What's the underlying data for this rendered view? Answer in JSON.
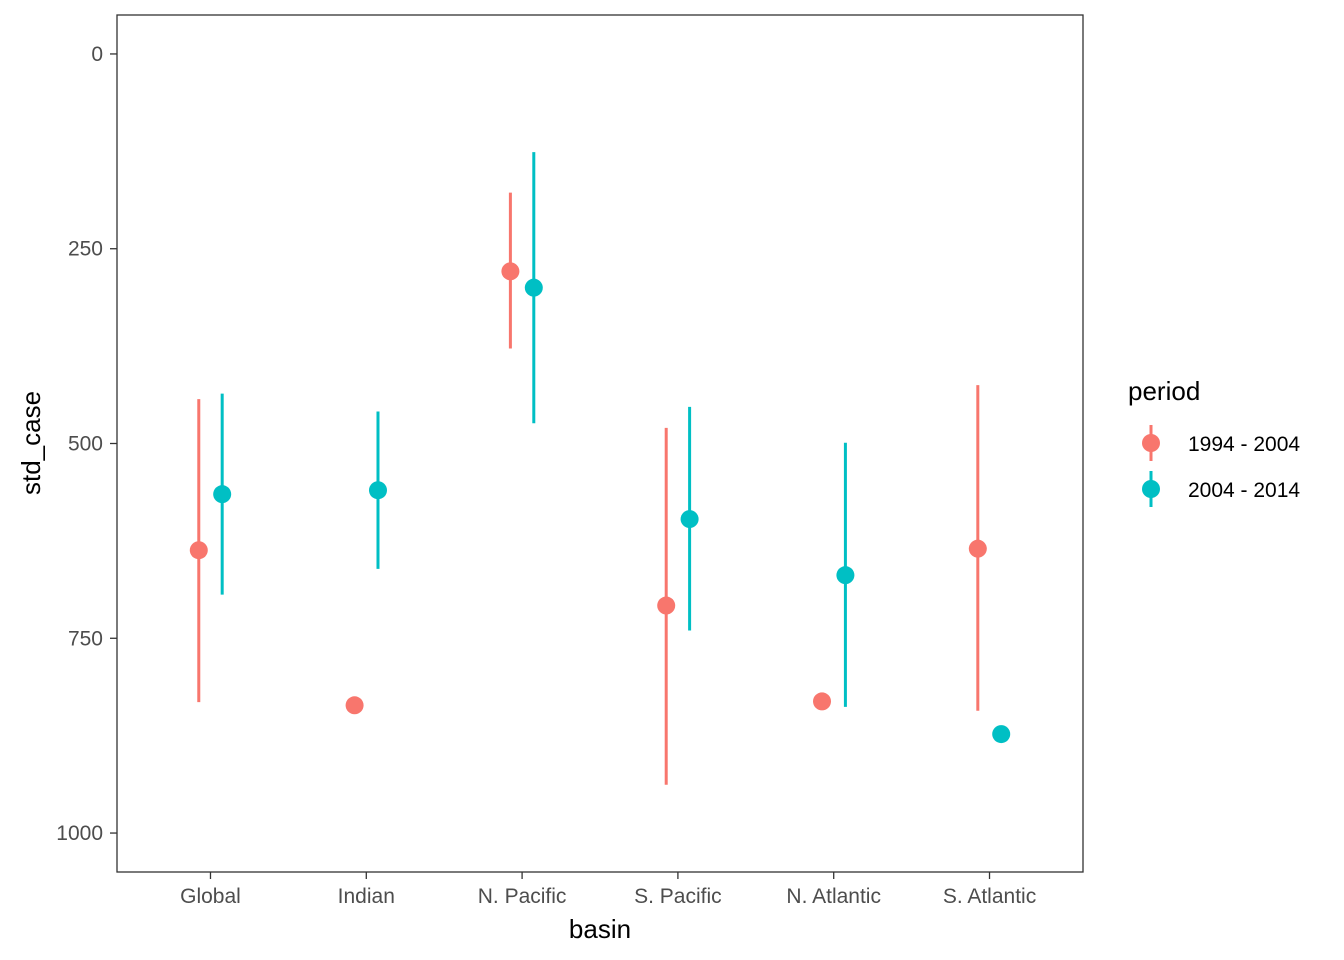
{
  "chart_data": {
    "type": "pointrange",
    "title": "",
    "xlabel": "basin",
    "ylabel": "std_case",
    "y_reversed": true,
    "ylim": [
      1050,
      -50
    ],
    "y_ticks": [
      0,
      250,
      500,
      750,
      1000
    ],
    "categories": [
      "Global",
      "Indian",
      "N. Pacific",
      "S. Pacific",
      "N. Atlantic",
      "S. Atlantic"
    ],
    "grid": false,
    "legend": {
      "title": "period",
      "placement": "right"
    },
    "series": [
      {
        "name": "1994 - 2004",
        "color": "#F8766D",
        "points": [
          {
            "category": "Global",
            "y": 637,
            "ymin": 443,
            "ymax": 832
          },
          {
            "category": "Indian",
            "y": 836,
            "ymin": null,
            "ymax": null
          },
          {
            "category": "N. Pacific",
            "y": 279,
            "ymin": 178,
            "ymax": 378
          },
          {
            "category": "S. Pacific",
            "y": 708,
            "ymin": 480,
            "ymax": 938
          },
          {
            "category": "N. Atlantic",
            "y": 831,
            "ymin": null,
            "ymax": null
          },
          {
            "category": "S. Atlantic",
            "y": 635,
            "ymin": 425,
            "ymax": 843
          }
        ]
      },
      {
        "name": "2004 - 2014",
        "color": "#00BFC4",
        "points": [
          {
            "category": "Global",
            "y": 565,
            "ymin": 436,
            "ymax": 694
          },
          {
            "category": "Indian",
            "y": 560,
            "ymin": 459,
            "ymax": 661
          },
          {
            "category": "N. Pacific",
            "y": 300,
            "ymin": 126,
            "ymax": 474
          },
          {
            "category": "S. Pacific",
            "y": 597,
            "ymin": 453,
            "ymax": 740
          },
          {
            "category": "N. Atlantic",
            "y": 669,
            "ymin": 499,
            "ymax": 838
          },
          {
            "category": "S. Atlantic",
            "y": 873,
            "ymin": null,
            "ymax": null
          }
        ]
      }
    ]
  }
}
